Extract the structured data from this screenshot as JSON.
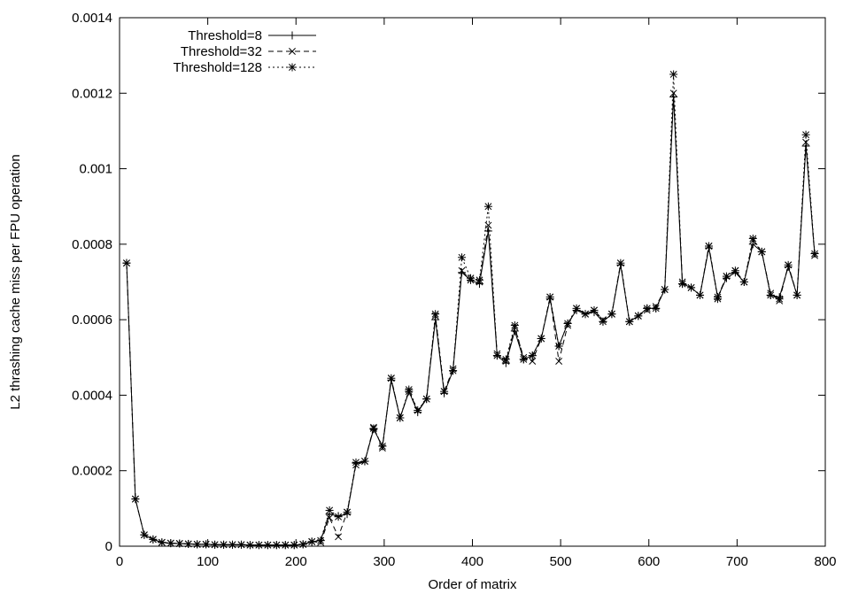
{
  "chart_data": {
    "type": "line",
    "title": "",
    "xlabel": "Order of matrix",
    "ylabel": "L2 thrashing cache miss per FPU operation",
    "xlim": [
      0,
      800
    ],
    "ylim": [
      0,
      0.0014
    ],
    "xticks": [
      "0",
      "100",
      "200",
      "300",
      "400",
      "500",
      "600",
      "700",
      "800"
    ],
    "yticks": [
      "0",
      "0.0002",
      "0.0004",
      "0.0006",
      "0.0008",
      "0.001",
      "0.0012",
      "0.0014"
    ],
    "grid": false,
    "legend_position": "top-left",
    "x": [
      8,
      18,
      28,
      38,
      48,
      58,
      68,
      78,
      88,
      98,
      108,
      118,
      128,
      138,
      148,
      158,
      168,
      178,
      188,
      198,
      208,
      218,
      228,
      238,
      248,
      258,
      268,
      278,
      288,
      298,
      308,
      318,
      328,
      338,
      348,
      358,
      368,
      378,
      388,
      398,
      408,
      418,
      428,
      438,
      448,
      458,
      468,
      478,
      488,
      498,
      508,
      518,
      528,
      538,
      548,
      558,
      568,
      578,
      588,
      598,
      608,
      618,
      628,
      638,
      648,
      658,
      668,
      678,
      688,
      698,
      708,
      718,
      728,
      738,
      748,
      758,
      768,
      778,
      788
    ],
    "series": [
      {
        "name": "Threshold=8",
        "style": "solid",
        "marker": "plus",
        "values": [
          0.00075,
          0.000125,
          3e-05,
          1.8e-05,
          1e-05,
          8e-06,
          7e-06,
          6e-06,
          5e-06,
          5e-06,
          4e-06,
          4e-06,
          4e-06,
          4e-06,
          3e-06,
          3e-06,
          3e-06,
          3e-06,
          3e-06,
          3e-06,
          5e-06,
          1.2e-05,
          1.5e-05,
          8.5e-05,
          8e-05,
          8.5e-05,
          0.00022,
          0.000225,
          0.00031,
          0.000265,
          0.00044,
          0.00034,
          0.00041,
          0.000355,
          0.00039,
          0.0006,
          0.000405,
          0.000465,
          0.000725,
          0.000705,
          0.000695,
          0.000835,
          0.000505,
          0.000485,
          0.00057,
          0.000495,
          0.000505,
          0.00055,
          0.000655,
          0.00053,
          0.00059,
          0.000625,
          0.000615,
          0.00062,
          0.000595,
          0.000615,
          0.000745,
          0.000595,
          0.00061,
          0.00063,
          0.00063,
          0.00068,
          0.00119,
          0.000695,
          0.000685,
          0.000665,
          0.00079,
          0.00066,
          0.00071,
          0.000725,
          0.0007,
          0.0008,
          0.00078,
          0.000665,
          0.00066,
          0.00074,
          0.000665,
          0.00106,
          0.000775
        ]
      },
      {
        "name": "Threshold=32",
        "style": "dashed",
        "marker": "x",
        "values": [
          0.00075,
          0.000125,
          3e-05,
          1.8e-05,
          1e-05,
          8e-06,
          7e-06,
          6e-06,
          5e-06,
          5e-06,
          4e-06,
          4e-06,
          4e-06,
          4e-06,
          3e-06,
          3e-06,
          3e-06,
          3e-06,
          3e-06,
          3e-06,
          5e-06,
          1.2e-05,
          1e-05,
          7.5e-05,
          2.5e-05,
          9e-05,
          0.000215,
          0.000225,
          0.000315,
          0.00026,
          0.000445,
          0.00034,
          0.00041,
          0.00036,
          0.00039,
          0.00061,
          0.00041,
          0.00047,
          0.00073,
          0.000705,
          0.0007,
          0.00085,
          0.00051,
          0.00049,
          0.00058,
          0.0005,
          0.00049,
          0.00055,
          0.00066,
          0.00049,
          0.000585,
          0.00063,
          0.000615,
          0.000625,
          0.0006,
          0.000615,
          0.00075,
          0.000595,
          0.00061,
          0.000625,
          0.000635,
          0.00068,
          0.0012,
          0.0007,
          0.000685,
          0.000665,
          0.000795,
          0.00066,
          0.000715,
          0.00073,
          0.0007,
          0.00081,
          0.00078,
          0.00067,
          0.00065,
          0.000745,
          0.000665,
          0.00107,
          0.00077
        ]
      },
      {
        "name": "Threshold=128",
        "style": "dotted",
        "marker": "star",
        "values": [
          0.00075,
          0.000125,
          3e-05,
          1.8e-05,
          1e-05,
          8e-06,
          7e-06,
          6e-06,
          5e-06,
          5e-06,
          4e-06,
          4e-06,
          4e-06,
          4e-06,
          3e-06,
          3e-06,
          3e-06,
          3e-06,
          3e-06,
          3e-06,
          5e-06,
          1.2e-05,
          1.5e-05,
          9.5e-05,
          7.8e-05,
          9e-05,
          0.000222,
          0.000225,
          0.000312,
          0.000265,
          0.000445,
          0.00034,
          0.000415,
          0.00036,
          0.00039,
          0.000615,
          0.00041,
          0.000465,
          0.000765,
          0.00071,
          0.000705,
          0.0009,
          0.000505,
          0.000495,
          0.000585,
          0.000495,
          0.000505,
          0.00055,
          0.00066,
          0.00053,
          0.00059,
          0.00063,
          0.000615,
          0.000625,
          0.000595,
          0.000615,
          0.00075,
          0.000595,
          0.00061,
          0.00063,
          0.00063,
          0.00068,
          0.00125,
          0.000695,
          0.000685,
          0.000665,
          0.000795,
          0.000655,
          0.000715,
          0.00073,
          0.0007,
          0.000815,
          0.00078,
          0.000665,
          0.000655,
          0.000745,
          0.000665,
          0.00109,
          0.000775
        ]
      }
    ]
  }
}
